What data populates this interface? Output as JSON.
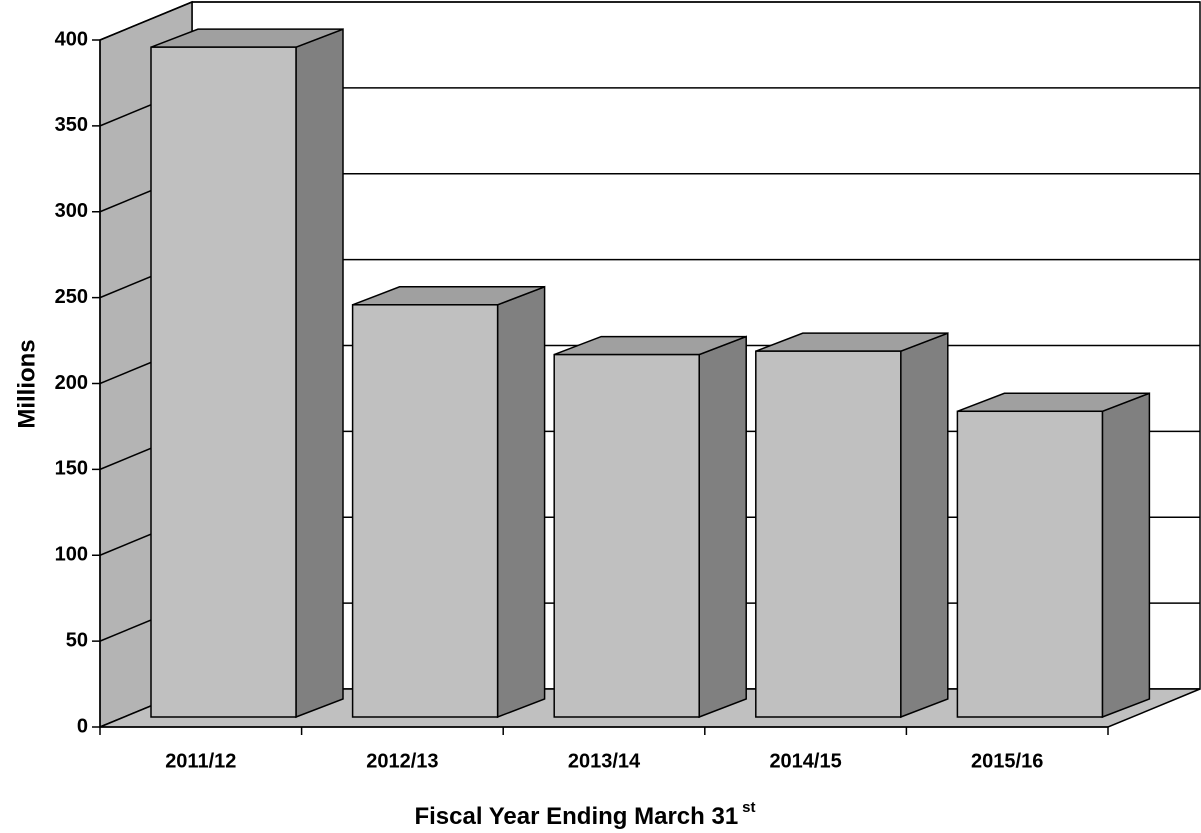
{
  "chart_data": {
    "type": "bar3d",
    "y_label": "Millions",
    "x_label": "Fiscal Year Ending March 31",
    "x_label_sup": "st",
    "categories": [
      "2011/12",
      "2012/13",
      "2013/14",
      "2014/15",
      "2015/16"
    ],
    "values": [
      390,
      240,
      211,
      213,
      178
    ],
    "color": "#c0c0c0",
    "ylim": [
      0,
      400
    ],
    "yticks": [
      0,
      50,
      100,
      150,
      200,
      250,
      300,
      350,
      400
    ],
    "grid": true
  }
}
